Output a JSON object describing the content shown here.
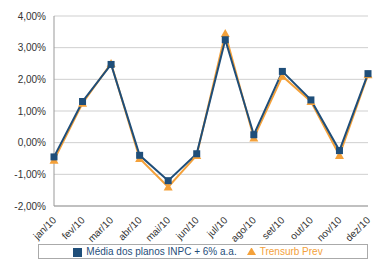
{
  "chart_data": {
    "type": "line",
    "categories": [
      "jan/10",
      "fev/10",
      "mar/10",
      "abr/10",
      "mai/10",
      "jun/10",
      "jul/10",
      "ago/10",
      "set/10",
      "out/10",
      "nov/10",
      "dez/10"
    ],
    "series": [
      {
        "name": "Trensurb Prev",
        "color": "#f4a13a",
        "marker": "triangle",
        "values": [
          -0.55,
          1.25,
          2.5,
          -0.5,
          -1.4,
          -0.4,
          3.45,
          0.15,
          2.1,
          1.3,
          -0.4,
          2.15
        ]
      },
      {
        "name": "Média dos planos INPC + 6% a.a.",
        "color": "#1f4e79",
        "marker": "square",
        "values": [
          -0.45,
          1.3,
          2.47,
          -0.4,
          -1.2,
          -0.35,
          3.25,
          0.25,
          2.25,
          1.35,
          -0.25,
          2.18
        ]
      }
    ],
    "ylim": [
      -2,
      4
    ],
    "yticks": [
      {
        "value": -2,
        "label": "-2,00%"
      },
      {
        "value": -1,
        "label": "-1,00%"
      },
      {
        "value": 0,
        "label": "0,00%"
      },
      {
        "value": 1,
        "label": "1,00%"
      },
      {
        "value": 2,
        "label": "2,00%"
      },
      {
        "value": 3,
        "label": "3,00%"
      },
      {
        "value": 4,
        "label": "4,00%"
      }
    ],
    "grid": true,
    "legend": "bottom"
  }
}
